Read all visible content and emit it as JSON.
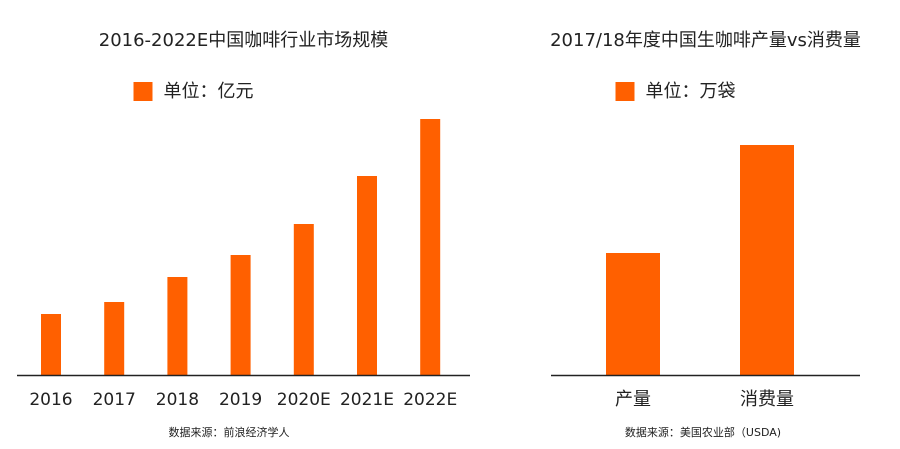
{
  "chart_data": [
    {
      "type": "bar",
      "title": "2016-2022E中国咖啡行业市场规模",
      "categories": [
        "2016",
        "2017",
        "2018",
        "2019",
        "2020E",
        "2021E",
        "2022E"
      ],
      "series": [
        {
          "name": "单位：亿元",
          "color": "#ff6000",
          "values": [
            61,
            73,
            98,
            120,
            151,
            199,
            256
          ]
        }
      ],
      "ylim": [
        0,
        256
      ],
      "source": "数据来源：前浪经济学人"
    },
    {
      "type": "bar",
      "title": "2017/18年度中国生咖啡产量vs消费量",
      "categories": [
        "产量",
        "消费量"
      ],
      "series": [
        {
          "name": "单位：万袋",
          "color": "#ff6000",
          "values": [
            122,
            230
          ]
        }
      ],
      "ylim": [
        0,
        256
      ],
      "source": "数据来源：美国农业部（USDA)"
    }
  ]
}
